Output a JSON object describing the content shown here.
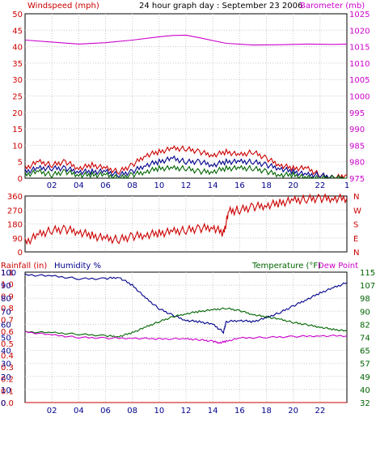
{
  "colors": {
    "red": "#cc0000",
    "magenta": "#cc00cc",
    "navy": "#00008b",
    "green": "#006400",
    "grid": "#c8c8c8"
  },
  "chart_data": [
    {
      "type": "line",
      "title": "24 hour graph day : September 23 2006",
      "ylabel_left": "Windspeed (mph)",
      "ylabel_right": "Barometer (mb)",
      "x_ticks": [
        "02",
        "04",
        "06",
        "08",
        "10",
        "12",
        "14",
        "16",
        "18",
        "20",
        "22"
      ],
      "x_end_tick": "1",
      "ylim_left": [
        0,
        50
      ],
      "yticks_left": [
        "0",
        "5",
        "10",
        "15",
        "20",
        "25",
        "30",
        "35",
        "40",
        "45",
        "50"
      ],
      "ylim_right": [
        975,
        1025
      ],
      "yticks_right": [
        "975",
        "980",
        "985",
        "990",
        "995",
        "1000",
        "1005",
        "1010",
        "1015",
        "1020",
        "1025"
      ],
      "series": [
        {
          "axis": "right",
          "color": "#cc00cc",
          "x": [
            0,
            2,
            4,
            6,
            8,
            10,
            11,
            12,
            13,
            15,
            17,
            19,
            21,
            23,
            24
          ],
          "values": [
            1017,
            1016.4,
            1015.8,
            1016.2,
            1017,
            1018,
            1018.4,
            1018.5,
            1017.7,
            1016,
            1015.5,
            1015.6,
            1015.8,
            1015.7,
            1015.8
          ]
        },
        {
          "color": "#cc0000",
          "x": [
            0,
            1,
            2,
            3,
            4,
            5,
            6,
            7,
            8,
            9,
            10,
            11,
            12,
            13,
            14,
            15,
            16,
            17,
            18,
            19,
            20,
            21,
            22,
            23,
            24
          ],
          "values": [
            3,
            5,
            4,
            5,
            3,
            4,
            3,
            2,
            4,
            7,
            8,
            9,
            9,
            8,
            7,
            8,
            7,
            8,
            6,
            4,
            3,
            3,
            1,
            0,
            1
          ]
        },
        {
          "color": "#00008b",
          "x": [
            0,
            1,
            2,
            3,
            4,
            5,
            6,
            7,
            8,
            9,
            10,
            11,
            12,
            13,
            14,
            15,
            16,
            17,
            18,
            19,
            20,
            21,
            22,
            23,
            24
          ],
          "values": [
            2,
            3,
            3,
            3,
            2,
            2,
            2,
            1,
            2,
            4,
            5,
            6,
            5,
            5,
            4,
            5,
            5,
            5,
            4,
            3,
            2,
            1,
            1,
            0,
            0
          ]
        },
        {
          "color": "#006400",
          "x": [
            0,
            1,
            2,
            3,
            4,
            5,
            6,
            7,
            8,
            9,
            10,
            11,
            12,
            13,
            14,
            15,
            16,
            17,
            18,
            19,
            20,
            21,
            22,
            23,
            24
          ],
          "values": [
            1,
            2,
            1,
            2,
            1,
            1,
            1,
            0,
            1,
            2,
            3,
            3,
            3,
            2,
            2,
            3,
            3,
            3,
            2,
            1,
            1,
            0,
            0,
            0,
            0
          ]
        }
      ]
    },
    {
      "type": "line",
      "ylim": [
        0,
        360
      ],
      "yticks_left": [
        "0",
        "90",
        "180",
        "270",
        "360"
      ],
      "yticks_right": [
        "N",
        "E",
        "S",
        "W",
        "N"
      ],
      "series": [
        {
          "color": "#cc0000",
          "x": [
            0,
            1,
            2,
            3,
            4,
            5,
            6,
            7,
            8,
            9,
            10,
            11,
            12,
            13,
            14,
            14.8,
            15.2,
            16,
            17,
            18,
            19,
            20,
            21,
            22,
            23,
            24
          ],
          "values": [
            60,
            110,
            140,
            145,
            130,
            105,
            85,
            80,
            100,
            110,
            120,
            130,
            140,
            150,
            160,
            120,
            260,
            270,
            290,
            300,
            315,
            330,
            340,
            345,
            345,
            345
          ]
        }
      ]
    },
    {
      "type": "line",
      "ylabel_left": "Rainfall (in)",
      "ylabel_left2": "Humidity %",
      "ylabel_right": "Temperature (°F)",
      "ylabel_right2": "Dew Point",
      "x_ticks": [
        "02",
        "04",
        "06",
        "08",
        "10",
        "12",
        "14",
        "16",
        "18",
        "20",
        "22"
      ],
      "yticks_rain": [
        "0.0",
        "0.1",
        "0.2",
        "0.3",
        "0.4",
        "0.5",
        "0.6",
        "0.7",
        "0.8",
        "0.9",
        "1.0",
        "1.1"
      ],
      "yticks_humidity": [
        "0",
        "10",
        "20",
        "30",
        "40",
        "50",
        "60",
        "70",
        "80",
        "90",
        "100"
      ],
      "yticks_right": [
        "32",
        "40",
        "49",
        "57",
        "65",
        "74",
        "82",
        "90",
        "98",
        "107",
        "115"
      ],
      "ylim_rain": [
        0,
        1.1
      ],
      "ylim_humidity": [
        0,
        100
      ],
      "ylim_temp": [
        32,
        115
      ],
      "series": [
        {
          "name": "Humidity %",
          "axis": "humidity",
          "color": "#00008b",
          "x": [
            0,
            2,
            4,
            6,
            7,
            8,
            9,
            10,
            11,
            12,
            13,
            14,
            14.8,
            15,
            16,
            17,
            18,
            19,
            20,
            21,
            22,
            23,
            24
          ],
          "values": [
            98,
            97,
            95,
            95,
            96,
            90,
            80,
            72,
            67,
            63,
            62,
            60,
            54,
            62,
            63,
            62,
            65,
            69,
            74,
            79,
            84,
            88,
            92
          ]
        },
        {
          "name": "Temperature (°F)",
          "axis": "temp",
          "color": "#006400",
          "x": [
            0,
            2,
            4,
            6,
            7,
            8,
            9,
            10,
            11,
            12,
            13,
            14,
            15,
            16,
            17,
            18,
            19,
            20,
            21,
            22,
            23,
            24
          ],
          "values": [
            77,
            76.5,
            75.5,
            74.5,
            74,
            76.5,
            80,
            83.5,
            86.5,
            88.5,
            90,
            91,
            92,
            90.5,
            88,
            86.5,
            85,
            83,
            81.5,
            80,
            78.5,
            77.5
          ]
        },
        {
          "name": "Dew Point",
          "axis": "temp",
          "color": "#cc00cc",
          "x": [
            0,
            2,
            4,
            6,
            8,
            10,
            12,
            13,
            14,
            14.5,
            15,
            16,
            18,
            20,
            22,
            24
          ],
          "values": [
            77,
            75,
            73.5,
            73,
            73,
            72.5,
            72.5,
            72,
            71,
            70,
            71,
            73,
            73.5,
            74,
            74.5,
            74.5
          ]
        },
        {
          "name": "Rainfall (in)",
          "axis": "rain",
          "color": "#cc0000",
          "x": [
            0,
            24
          ],
          "values": [
            0,
            0
          ]
        }
      ]
    }
  ]
}
